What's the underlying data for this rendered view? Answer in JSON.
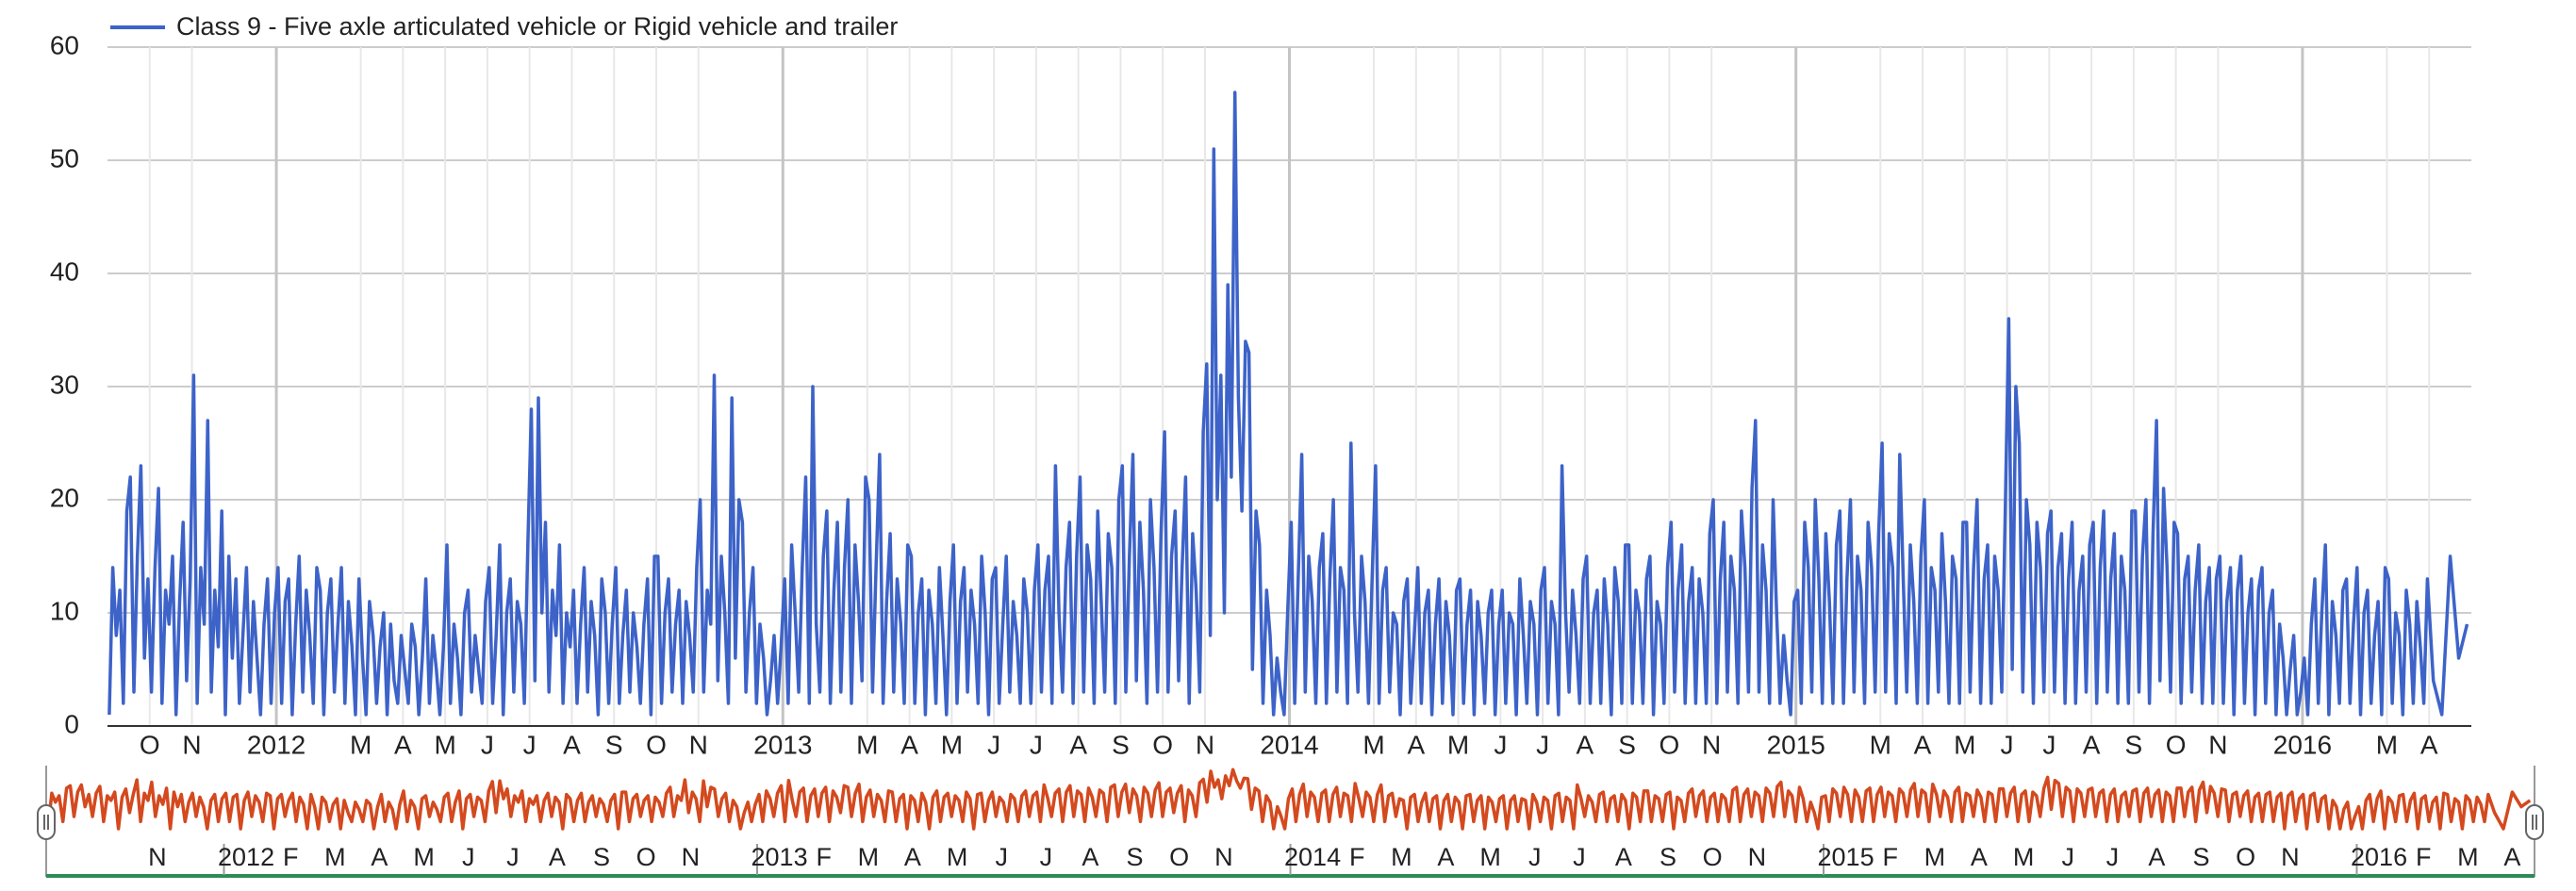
{
  "chart_data": {
    "type": "line",
    "xlim": [
      "2011-09",
      "2016-05"
    ],
    "ylim": [
      0,
      60
    ],
    "yticks": [
      0,
      10,
      20,
      30,
      40,
      50,
      60
    ],
    "grid": true,
    "x": [
      "2011-09",
      "2011-10",
      "2011-11",
      "2011-12",
      "2012-01",
      "2012-02",
      "2012-03",
      "2012-04",
      "2012-05",
      "2012-06",
      "2012-07",
      "2012-08",
      "2012-09",
      "2012-10",
      "2012-11",
      "2012-12",
      "2013-01",
      "2013-02",
      "2013-03",
      "2013-04",
      "2013-05",
      "2013-06",
      "2013-07",
      "2013-08",
      "2013-09",
      "2013-10",
      "2013-11",
      "2013-12",
      "2014-01",
      "2014-02",
      "2014-03",
      "2014-04",
      "2014-05",
      "2014-06",
      "2014-07",
      "2014-08",
      "2014-09",
      "2014-10",
      "2014-11",
      "2014-12",
      "2015-01",
      "2015-02",
      "2015-03",
      "2015-04",
      "2015-05",
      "2015-06",
      "2015-07",
      "2015-08",
      "2015-09",
      "2015-10",
      "2015-11",
      "2015-12",
      "2016-01",
      "2016-02",
      "2016-03",
      "2016-04"
    ],
    "series": [
      {
        "name": "Class 9 - Five axle articulated vehicle or Rigid vehicle and trailer",
        "color": "#3d63c9",
        "values": [
          [
            1,
            14,
            8,
            12,
            2,
            19,
            22,
            3,
            15,
            23,
            6,
            13
          ],
          [
            3,
            14,
            21,
            2,
            12,
            9,
            15,
            1,
            11,
            18,
            4,
            13
          ],
          [
            31,
            2,
            14,
            9,
            27,
            3,
            12,
            7,
            19,
            1,
            15,
            6
          ],
          [
            13,
            2,
            8,
            14,
            3,
            11,
            6,
            1,
            9,
            13,
            2,
            10
          ],
          [
            14,
            2,
            11,
            13,
            1,
            9,
            15,
            3,
            12,
            8,
            2,
            14
          ],
          [
            12,
            1,
            10,
            13,
            3,
            9,
            14,
            2,
            11,
            7,
            1,
            13
          ],
          [
            6,
            1,
            11,
            8,
            2,
            7,
            10,
            1,
            9,
            4,
            2,
            8
          ],
          [
            5,
            2,
            9,
            7,
            1,
            6,
            13,
            2,
            8,
            5,
            1,
            7
          ],
          [
            16,
            2,
            9,
            6,
            1,
            10,
            12,
            3,
            8,
            5,
            2,
            11
          ],
          [
            14,
            2,
            8,
            16,
            1,
            10,
            13,
            3,
            11,
            9,
            2,
            16
          ],
          [
            28,
            4,
            29,
            10,
            18,
            3,
            12,
            8,
            16,
            2,
            10,
            7
          ],
          [
            12,
            2,
            9,
            14,
            3,
            11,
            8,
            1,
            13,
            10,
            2,
            9
          ],
          [
            14,
            2,
            8,
            12,
            3,
            10,
            7,
            2,
            9,
            13,
            1,
            15
          ],
          [
            15,
            2,
            10,
            13,
            3,
            9,
            12,
            2,
            11,
            8,
            3,
            14
          ],
          [
            20,
            3,
            12,
            9,
            31,
            4,
            15,
            10,
            2,
            29,
            6,
            20
          ],
          [
            18,
            3,
            10,
            14,
            2,
            9,
            6,
            1,
            4,
            8,
            2,
            7
          ],
          [
            13,
            2,
            16,
            10,
            3,
            14,
            22,
            2,
            30,
            9,
            3,
            15
          ],
          [
            19,
            2,
            12,
            18,
            3,
            14,
            20,
            2,
            16,
            11,
            4,
            22
          ],
          [
            20,
            3,
            14,
            24,
            2,
            11,
            17,
            3,
            13,
            9,
            2,
            16
          ],
          [
            15,
            2,
            10,
            13,
            1,
            12,
            9,
            2,
            14,
            8,
            1,
            11
          ],
          [
            16,
            2,
            11,
            14,
            3,
            12,
            9,
            2,
            15,
            10,
            1,
            13
          ],
          [
            14,
            2,
            9,
            15,
            3,
            11,
            8,
            2,
            13,
            10,
            2,
            12
          ],
          [
            16,
            3,
            12,
            15,
            2,
            23,
            10,
            3,
            14,
            18,
            2,
            15
          ],
          [
            22,
            3,
            16,
            13,
            2,
            19,
            11,
            3,
            17,
            14,
            2,
            20
          ],
          [
            23,
            3,
            15,
            24,
            4,
            18,
            12,
            2,
            20,
            14,
            3,
            17
          ],
          [
            26,
            3,
            15,
            19,
            4,
            14,
            22,
            2,
            17,
            12,
            3,
            26
          ],
          [
            32,
            8,
            51,
            20,
            31,
            10,
            39,
            22,
            56,
            29,
            19,
            34
          ],
          [
            33,
            5,
            19,
            16,
            2,
            12,
            8,
            1,
            6,
            3,
            1,
            10
          ],
          [
            18,
            2,
            13,
            24,
            3,
            15,
            11,
            2,
            14,
            17,
            2,
            13
          ],
          [
            20,
            3,
            14,
            12,
            2,
            25,
            10,
            3,
            15,
            11,
            2,
            13
          ],
          [
            23,
            2,
            12,
            14,
            3,
            10,
            9,
            1,
            11,
            13,
            2,
            8
          ],
          [
            14,
            2,
            10,
            12,
            1,
            9,
            13,
            2,
            11,
            8,
            1,
            12
          ],
          [
            13,
            2,
            9,
            12,
            1,
            11,
            8,
            2,
            10,
            12,
            1,
            9
          ],
          [
            12,
            2,
            10,
            9,
            1,
            13,
            8,
            2,
            11,
            9,
            1,
            12
          ],
          [
            14,
            2,
            11,
            9,
            1,
            23,
            10,
            3,
            12,
            8,
            2,
            13
          ],
          [
            15,
            2,
            10,
            12,
            2,
            13,
            9,
            1,
            14,
            11,
            2,
            16
          ],
          [
            16,
            2,
            12,
            10,
            2,
            13,
            15,
            1,
            11,
            9,
            2,
            14
          ],
          [
            18,
            3,
            12,
            16,
            2,
            11,
            14,
            2,
            13,
            10,
            2,
            17
          ],
          [
            20,
            2,
            13,
            18,
            3,
            15,
            12,
            2,
            19,
            14,
            3,
            21
          ],
          [
            27,
            3,
            16,
            12,
            2,
            20,
            10,
            2,
            8,
            4,
            1,
            11
          ],
          [
            12,
            2,
            18,
            14,
            3,
            20,
            13,
            2,
            17,
            11,
            2,
            16
          ],
          [
            19,
            2,
            13,
            20,
            3,
            15,
            12,
            2,
            18,
            14,
            3,
            17
          ],
          [
            25,
            3,
            17,
            14,
            2,
            24,
            13,
            3,
            16,
            11,
            2,
            15
          ],
          [
            20,
            2,
            14,
            12,
            3,
            17,
            11,
            2,
            15,
            13,
            2,
            18
          ],
          [
            18,
            3,
            14,
            20,
            2,
            13,
            16,
            2,
            15,
            12,
            3,
            19
          ],
          [
            36,
            5,
            30,
            25,
            3,
            20,
            16,
            2,
            18,
            14,
            3,
            17
          ],
          [
            19,
            3,
            14,
            17,
            2,
            13,
            18,
            2,
            12,
            15,
            3,
            16
          ],
          [
            18,
            2,
            14,
            19,
            3,
            13,
            17,
            2,
            15,
            12,
            2,
            19
          ],
          [
            19,
            3,
            15,
            20,
            2,
            17,
            27,
            4,
            21,
            14,
            3,
            18
          ],
          [
            17,
            2,
            13,
            15,
            3,
            12,
            16,
            2,
            11,
            14,
            2,
            13
          ],
          [
            15,
            2,
            11,
            14,
            1,
            12,
            15,
            2,
            10,
            13,
            1,
            12
          ],
          [
            14,
            2,
            10,
            12,
            1,
            9,
            6,
            1,
            5,
            8,
            1,
            3
          ],
          [
            6,
            1,
            9,
            13,
            2,
            10,
            16,
            1,
            11,
            8,
            2,
            12
          ],
          [
            13,
            2,
            9,
            14,
            1,
            10,
            12,
            2,
            8,
            11,
            1,
            14
          ],
          [
            13,
            2,
            10,
            8,
            1,
            12,
            9,
            2,
            11,
            7,
            2,
            13
          ],
          [
            4,
            1,
            15,
            6,
            9
          ]
        ]
      }
    ],
    "xticks": [
      {
        "value": "2011-10",
        "label": "O"
      },
      {
        "value": "2011-11",
        "label": "N"
      },
      {
        "value": "2012-01",
        "label": "2012"
      },
      {
        "value": "2012-03",
        "label": "M"
      },
      {
        "value": "2012-04",
        "label": "A"
      },
      {
        "value": "2012-05",
        "label": "M"
      },
      {
        "value": "2012-06",
        "label": "J"
      },
      {
        "value": "2012-07",
        "label": "J"
      },
      {
        "value": "2012-08",
        "label": "A"
      },
      {
        "value": "2012-09",
        "label": "S"
      },
      {
        "value": "2012-10",
        "label": "O"
      },
      {
        "value": "2012-11",
        "label": "N"
      },
      {
        "value": "2013-01",
        "label": "2013"
      },
      {
        "value": "2013-03",
        "label": "M"
      },
      {
        "value": "2013-04",
        "label": "A"
      },
      {
        "value": "2013-05",
        "label": "M"
      },
      {
        "value": "2013-06",
        "label": "J"
      },
      {
        "value": "2013-07",
        "label": "J"
      },
      {
        "value": "2013-08",
        "label": "A"
      },
      {
        "value": "2013-09",
        "label": "S"
      },
      {
        "value": "2013-10",
        "label": "O"
      },
      {
        "value": "2013-11",
        "label": "N"
      },
      {
        "value": "2014-01",
        "label": "2014"
      },
      {
        "value": "2014-03",
        "label": "M"
      },
      {
        "value": "2014-04",
        "label": "A"
      },
      {
        "value": "2014-05",
        "label": "M"
      },
      {
        "value": "2014-06",
        "label": "J"
      },
      {
        "value": "2014-07",
        "label": "J"
      },
      {
        "value": "2014-08",
        "label": "A"
      },
      {
        "value": "2014-09",
        "label": "S"
      },
      {
        "value": "2014-10",
        "label": "O"
      },
      {
        "value": "2014-11",
        "label": "N"
      },
      {
        "value": "2015-01",
        "label": "2015"
      },
      {
        "value": "2015-03",
        "label": "M"
      },
      {
        "value": "2015-04",
        "label": "A"
      },
      {
        "value": "2015-05",
        "label": "M"
      },
      {
        "value": "2015-06",
        "label": "J"
      },
      {
        "value": "2015-07",
        "label": "J"
      },
      {
        "value": "2015-08",
        "label": "A"
      },
      {
        "value": "2015-09",
        "label": "S"
      },
      {
        "value": "2015-10",
        "label": "O"
      },
      {
        "value": "2015-11",
        "label": "N"
      },
      {
        "value": "2016-01",
        "label": "2016"
      },
      {
        "value": "2016-03",
        "label": "M"
      },
      {
        "value": "2016-04",
        "label": "A"
      }
    ],
    "navigator": {
      "color": "#d4491e",
      "log_scale": true,
      "xticks": [
        {
          "value": "2011-11",
          "label": "N"
        },
        {
          "value": "2012-01",
          "label": "2012"
        },
        {
          "value": "2012-02",
          "label": "F"
        },
        {
          "value": "2012-03",
          "label": "M"
        },
        {
          "value": "2012-04",
          "label": "A"
        },
        {
          "value": "2012-05",
          "label": "M"
        },
        {
          "value": "2012-06",
          "label": "J"
        },
        {
          "value": "2012-07",
          "label": "J"
        },
        {
          "value": "2012-08",
          "label": "A"
        },
        {
          "value": "2012-09",
          "label": "S"
        },
        {
          "value": "2012-10",
          "label": "O"
        },
        {
          "value": "2012-11",
          "label": "N"
        },
        {
          "value": "2013-01",
          "label": "2013"
        },
        {
          "value": "2013-02",
          "label": "F"
        },
        {
          "value": "2013-03",
          "label": "M"
        },
        {
          "value": "2013-04",
          "label": "A"
        },
        {
          "value": "2013-05",
          "label": "M"
        },
        {
          "value": "2013-06",
          "label": "J"
        },
        {
          "value": "2013-07",
          "label": "J"
        },
        {
          "value": "2013-08",
          "label": "A"
        },
        {
          "value": "2013-09",
          "label": "S"
        },
        {
          "value": "2013-10",
          "label": "O"
        },
        {
          "value": "2013-11",
          "label": "N"
        },
        {
          "value": "2014-01",
          "label": "2014"
        },
        {
          "value": "2014-02",
          "label": "F"
        },
        {
          "value": "2014-03",
          "label": "M"
        },
        {
          "value": "2014-04",
          "label": "A"
        },
        {
          "value": "2014-05",
          "label": "M"
        },
        {
          "value": "2014-06",
          "label": "J"
        },
        {
          "value": "2014-07",
          "label": "J"
        },
        {
          "value": "2014-08",
          "label": "A"
        },
        {
          "value": "2014-09",
          "label": "S"
        },
        {
          "value": "2014-10",
          "label": "O"
        },
        {
          "value": "2014-11",
          "label": "N"
        },
        {
          "value": "2015-01",
          "label": "2015"
        },
        {
          "value": "2015-02",
          "label": "F"
        },
        {
          "value": "2015-03",
          "label": "M"
        },
        {
          "value": "2015-04",
          "label": "A"
        },
        {
          "value": "2015-05",
          "label": "M"
        },
        {
          "value": "2015-06",
          "label": "J"
        },
        {
          "value": "2015-07",
          "label": "J"
        },
        {
          "value": "2015-08",
          "label": "A"
        },
        {
          "value": "2015-09",
          "label": "S"
        },
        {
          "value": "2015-10",
          "label": "O"
        },
        {
          "value": "2015-11",
          "label": "N"
        },
        {
          "value": "2016-01",
          "label": "2016"
        },
        {
          "value": "2016-02",
          "label": "F"
        },
        {
          "value": "2016-03",
          "label": "M"
        },
        {
          "value": "2016-04",
          "label": "A"
        }
      ]
    }
  }
}
